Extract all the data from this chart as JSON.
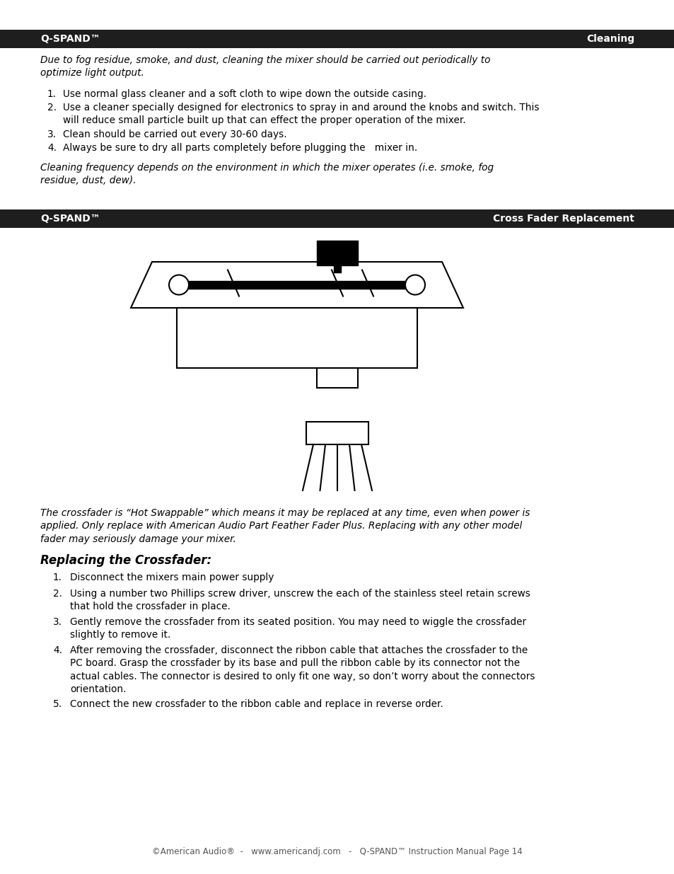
{
  "page_bg": "#ffffff",
  "header_bg": "#1e1e1e",
  "header_text_color": "#ffffff",
  "header1_left": "Q-SPAND™",
  "header1_right": "Cleaning",
  "header2_left": "Q-SPAND™",
  "header2_right": "Cross Fader Replacement",
  "italic_intro": "Due to fog residue, smoke, and dust, cleaning the mixer should be carried out periodically to\noptimize light output.",
  "cleaning_items": [
    "Use normal glass cleaner and a soft cloth to wipe down the outside casing.",
    "Use a cleaner specially designed for electronics to spray in and around the knobs and switch. This\nwill reduce small particle built up that can effect the proper operation of the mixer.",
    "Clean should be carried out every 30-60 days.",
    "Always be sure to dry all parts completely before plugging the   mixer in."
  ],
  "italic_closing": "Cleaning frequency depends on the environment in which the mixer operates (i.e. smoke, fog\nresidue, dust, dew).",
  "italic_para2": "The crossfader is “Hot Swappable” which means it may be replaced at any time, even when power is\napplied. Only replace with American Audio Part Feather Fader Plus. Replacing with any other model\nfader may seriously damage your mixer.",
  "replacing_title": "Replacing the Crossfader:",
  "replacing_items": [
    "Disconnect the mixers main power supply",
    "Using a number two Phillips screw driver, unscrew the each of the stainless steel retain screws\nthat hold the crossfader in place.",
    "Gently remove the crossfader from its seated position. You may need to wiggle the crossfader\nslightly to remove it.",
    "After removing the crossfader, disconnect the ribbon cable that attaches the crossfader to the\nPC board. Grasp the crossfader by its base and pull the ribbon cable by its connector not the\nactual cables. The connector is desired to only fit one way, so don’t worry about the connectors\norientation.",
    "Connect the new crossfader to the ribbon cable and replace in reverse order."
  ],
  "footer_text": "©American Audio®  -   www.americandj.com   -   Q-SPAND™ Instruction Manual Page 14",
  "ml": 57,
  "mr": 897,
  "font_body": 9.8,
  "font_header": 10.0
}
